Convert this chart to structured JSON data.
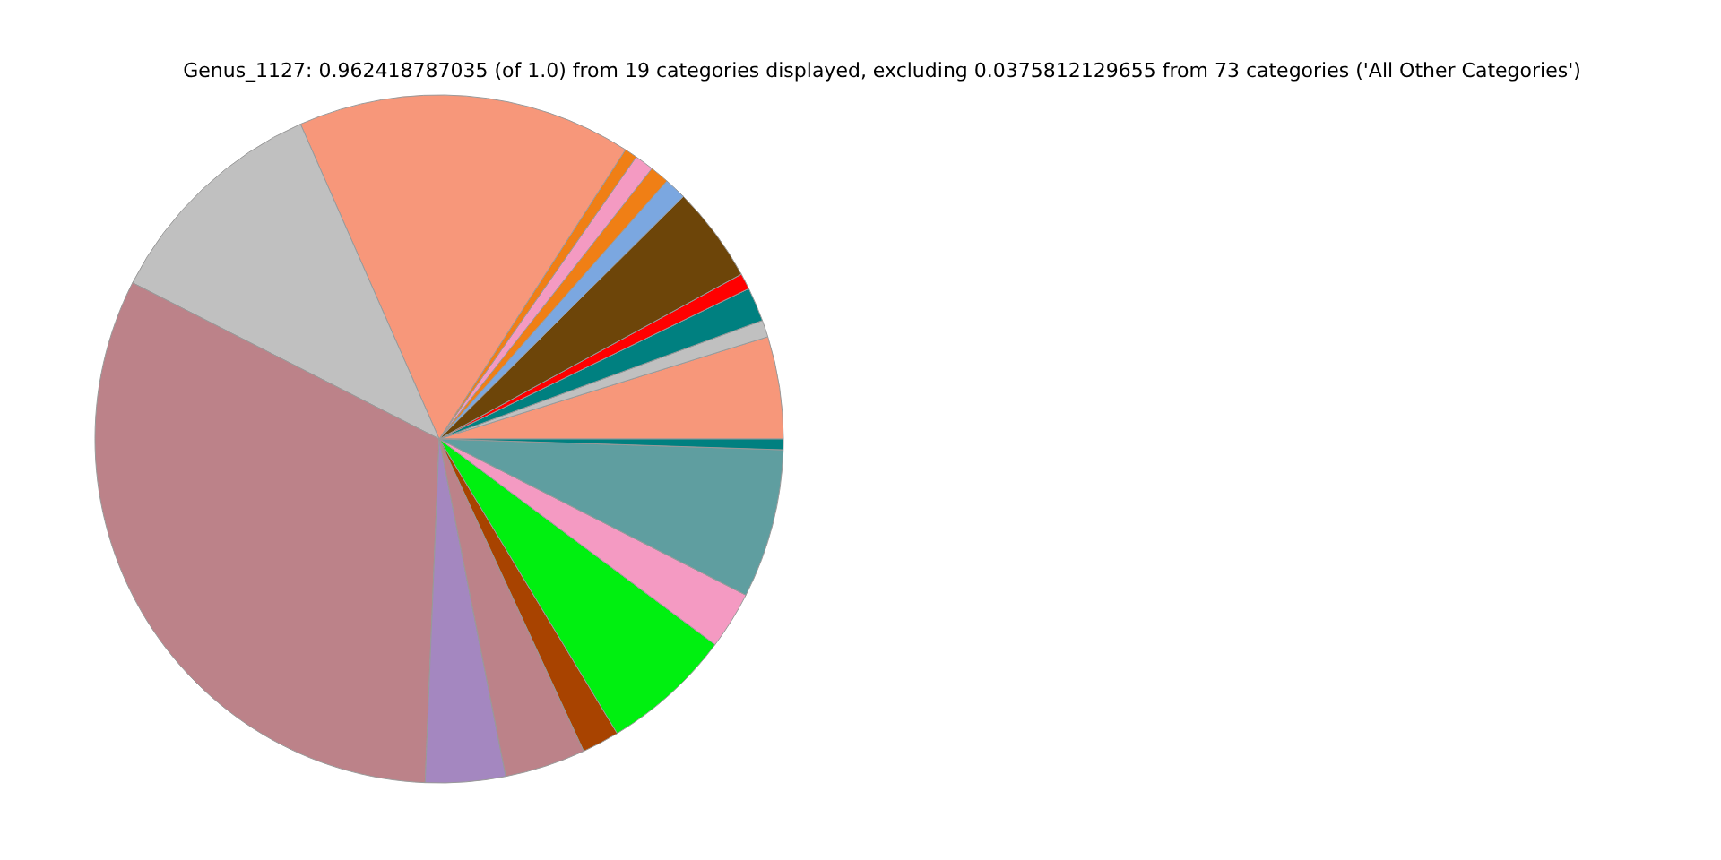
{
  "chart_data": {
    "type": "pie",
    "title": "Genus_1127: 0.962418787035 (of 1.0) from 19 categories displayed, excluding 0.0375812129655 from 73 categories ('All Other Categories')",
    "categories": [
      null,
      null,
      null,
      null,
      null,
      null,
      null,
      null,
      null,
      null,
      null,
      null,
      null,
      null,
      null,
      null,
      null,
      null,
      null
    ],
    "values": [
      4.8,
      0.8,
      1.6,
      0.75,
      4.5,
      1.05,
      0.9,
      0.9,
      0.6,
      15.7,
      10.9,
      31.85,
      3.75,
      3.8,
      1.75,
      6.15,
      2.7,
      7.0,
      0.5
    ],
    "colors": [
      "#f7977a",
      "#c0c0c0",
      "#008080",
      "#ff0000",
      "#6d4509",
      "#7ba7e0",
      "#f07f15",
      "#f49ac2",
      "#f07f15",
      "#f7977a",
      "#c0c0c0",
      "#bc8289",
      "#a487c0",
      "#bc8289",
      "#a84300",
      "#00f010",
      "#f49ac2",
      "#5f9ea0",
      "#008080"
    ],
    "legend": false
  }
}
